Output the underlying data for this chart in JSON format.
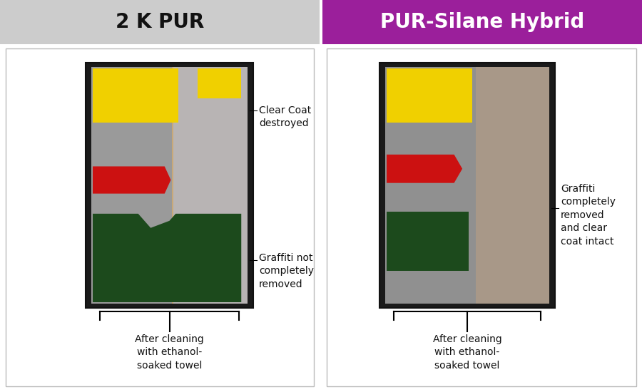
{
  "title_left": "2 K PUR",
  "title_right": "PUR-Silane Hybrid",
  "title_left_bg": "#cccccc",
  "title_right_bg": "#9b1f9b",
  "title_left_color": "#111111",
  "title_right_color": "#ffffff",
  "bg_color": "#ffffff",
  "panel_bg": "#ffffff",
  "panel_border": "#cccccc",
  "annotation_left_top": "Clear Coat\ndestroyed",
  "annotation_left_bottom": "Graffiti not\ncompletely\nremoved",
  "annotation_left_bracket": "After cleaning\nwith ethanol-\nsoaked towel",
  "annotation_right_top": "Graffiti\ncompletely\nremoved\nand clear\ncoat intact",
  "annotation_right_bracket": "After cleaning\nwith ethanol-\nsoaked towel",
  "font_size_title": 20,
  "font_size_annotation": 10,
  "font_size_bracket": 10
}
